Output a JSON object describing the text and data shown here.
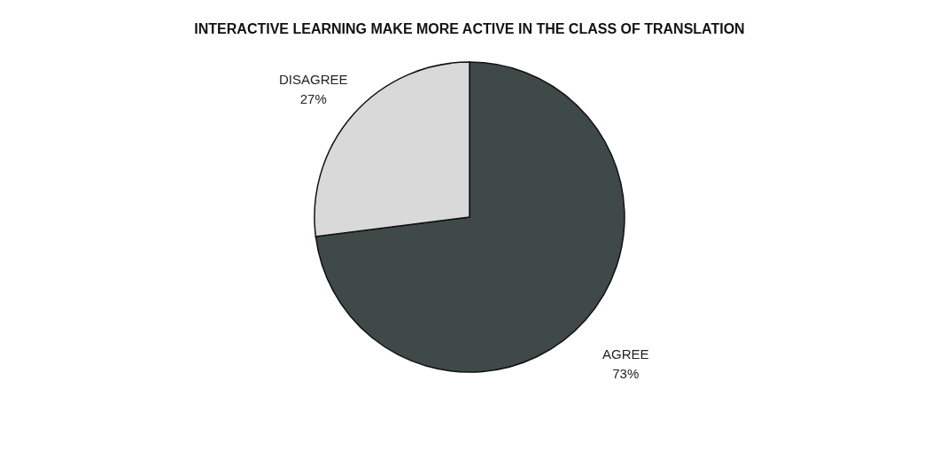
{
  "chart_data": {
    "type": "pie",
    "title": "INTERACTIVE LEARNING MAKE MORE ACTIVE IN THE CLASS OF TRANSLATION",
    "categories": [
      "AGREE",
      "DISAGREE"
    ],
    "values": [
      73,
      27
    ],
    "value_labels": [
      "73%",
      "27%"
    ],
    "colors": [
      "#3f4a48",
      "#d9d9d9"
    ],
    "legend": false
  }
}
